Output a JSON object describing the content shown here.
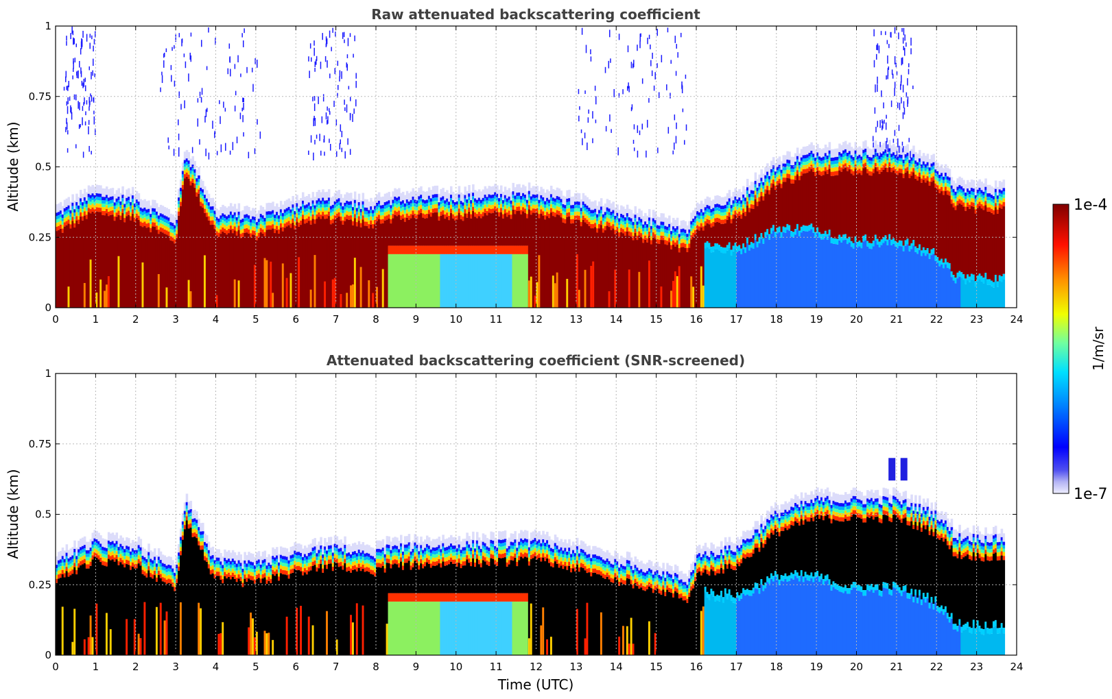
{
  "chart_data": [
    {
      "type": "heatmap",
      "title": "Raw attenuated backscattering coefficient",
      "xlabel": "",
      "ylabel": "Altitude (km)",
      "xlim": [
        0,
        24
      ],
      "ylim": [
        0,
        1
      ],
      "xticks": [
        0,
        1,
        2,
        3,
        4,
        5,
        6,
        7,
        8,
        9,
        10,
        11,
        12,
        13,
        14,
        15,
        16,
        17,
        18,
        19,
        20,
        21,
        22,
        23,
        24
      ],
      "yticks": [
        0,
        0.25,
        0.5,
        0.75,
        1
      ],
      "ytick_labels": [
        "0",
        "0.25",
        "0.5",
        "0.75",
        "1"
      ],
      "grid": true,
      "data_end_time": 23.7,
      "color_scale": {
        "min_label": "1e-7",
        "max_label": "1e-4",
        "unit": "1/m/sr",
        "scale": "log",
        "colormap": "jet"
      },
      "layer_top_km": [
        {
          "t": 0,
          "h": 0.33
        },
        {
          "t": 1,
          "h": 0.4
        },
        {
          "t": 2,
          "h": 0.38
        },
        {
          "t": 3,
          "h": 0.3
        },
        {
          "t": 3.25,
          "h": 0.55
        },
        {
          "t": 4,
          "h": 0.33
        },
        {
          "t": 5,
          "h": 0.32
        },
        {
          "t": 6,
          "h": 0.36
        },
        {
          "t": 7,
          "h": 0.38
        },
        {
          "t": 8,
          "h": 0.36
        },
        {
          "t": 8.3,
          "h": 0.38
        },
        {
          "t": 10,
          "h": 0.39
        },
        {
          "t": 12,
          "h": 0.4
        },
        {
          "t": 13,
          "h": 0.37
        },
        {
          "t": 14,
          "h": 0.33
        },
        {
          "t": 15,
          "h": 0.3
        },
        {
          "t": 15.8,
          "h": 0.26
        },
        {
          "t": 16,
          "h": 0.35
        },
        {
          "t": 17,
          "h": 0.38
        },
        {
          "t": 18,
          "h": 0.5
        },
        {
          "t": 19,
          "h": 0.55
        },
        {
          "t": 20,
          "h": 0.55
        },
        {
          "t": 21,
          "h": 0.55
        },
        {
          "t": 22,
          "h": 0.5
        },
        {
          "t": 22.5,
          "h": 0.42
        },
        {
          "t": 23.7,
          "h": 0.41
        }
      ]
    },
    {
      "type": "heatmap",
      "title": "Attenuated backscattering coefficient (SNR-screened)",
      "xlabel": "Time (UTC)",
      "ylabel": "Altitude (km)",
      "xlim": [
        0,
        24
      ],
      "ylim": [
        0,
        1
      ],
      "xticks": [
        0,
        1,
        2,
        3,
        4,
        5,
        6,
        7,
        8,
        9,
        10,
        11,
        12,
        13,
        14,
        15,
        16,
        17,
        18,
        19,
        20,
        21,
        22,
        23,
        24
      ],
      "yticks": [
        0,
        0.25,
        0.5,
        0.75,
        1
      ],
      "ytick_labels": [
        "0",
        "0.25",
        "0.5",
        "0.75",
        "1"
      ],
      "grid": true,
      "data_end_time": 23.7,
      "color_scale": {
        "min_label": "1e-7",
        "max_label": "1e-4",
        "unit": "1/m/sr",
        "scale": "log",
        "colormap": "jet"
      },
      "saturated_color": "#000000",
      "layer_top_km": [
        {
          "t": 0,
          "h": 0.33
        },
        {
          "t": 1,
          "h": 0.4
        },
        {
          "t": 2,
          "h": 0.38
        },
        {
          "t": 3,
          "h": 0.3
        },
        {
          "t": 3.25,
          "h": 0.55
        },
        {
          "t": 4,
          "h": 0.33
        },
        {
          "t": 5,
          "h": 0.32
        },
        {
          "t": 6,
          "h": 0.36
        },
        {
          "t": 7,
          "h": 0.38
        },
        {
          "t": 8,
          "h": 0.36
        },
        {
          "t": 8.3,
          "h": 0.38
        },
        {
          "t": 10,
          "h": 0.39
        },
        {
          "t": 12,
          "h": 0.4
        },
        {
          "t": 13,
          "h": 0.37
        },
        {
          "t": 14,
          "h": 0.33
        },
        {
          "t": 15,
          "h": 0.3
        },
        {
          "t": 15.8,
          "h": 0.26
        },
        {
          "t": 16,
          "h": 0.35
        },
        {
          "t": 17,
          "h": 0.38
        },
        {
          "t": 18,
          "h": 0.5
        },
        {
          "t": 19,
          "h": 0.55
        },
        {
          "t": 20,
          "h": 0.55
        },
        {
          "t": 21,
          "h": 0.55
        },
        {
          "t": 22,
          "h": 0.5
        },
        {
          "t": 22.5,
          "h": 0.42
        },
        {
          "t": 23.7,
          "h": 0.41
        }
      ]
    }
  ],
  "colorbar": {
    "max_label": "1e-4",
    "min_label": "1e-7",
    "unit_label": "1/m/sr"
  }
}
